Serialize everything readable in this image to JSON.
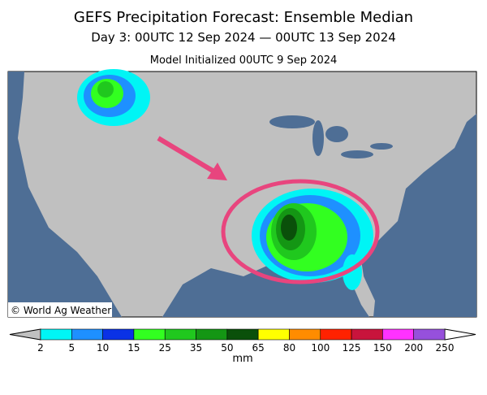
{
  "header": {
    "title": "GEFS Precipitation Forecast: Ensemble Median",
    "subtitle": "Day 3: 00UTC 12 Sep 2024 — 00UTC 13 Sep 2024",
    "initialized": "Model Initialized 00UTC 9 Sep 2024"
  },
  "map": {
    "credit": "© World Ag Weather"
  },
  "colorbar": {
    "ticks": [
      2,
      5,
      10,
      15,
      25,
      35,
      50,
      65,
      80,
      100,
      125,
      150,
      200,
      250
    ],
    "colors": [
      "#00f5f5",
      "#1e90ff",
      "#0a32e6",
      "#32ff20",
      "#20c81e",
      "#149614",
      "#0a500a",
      "#ffff00",
      "#ff8c00",
      "#ff2200",
      "#c8143c",
      "#ff32ff",
      "#9650dc"
    ],
    "under_color": "#c0c0c0",
    "over_color": "#ffffff",
    "unit": "mm"
  }
}
